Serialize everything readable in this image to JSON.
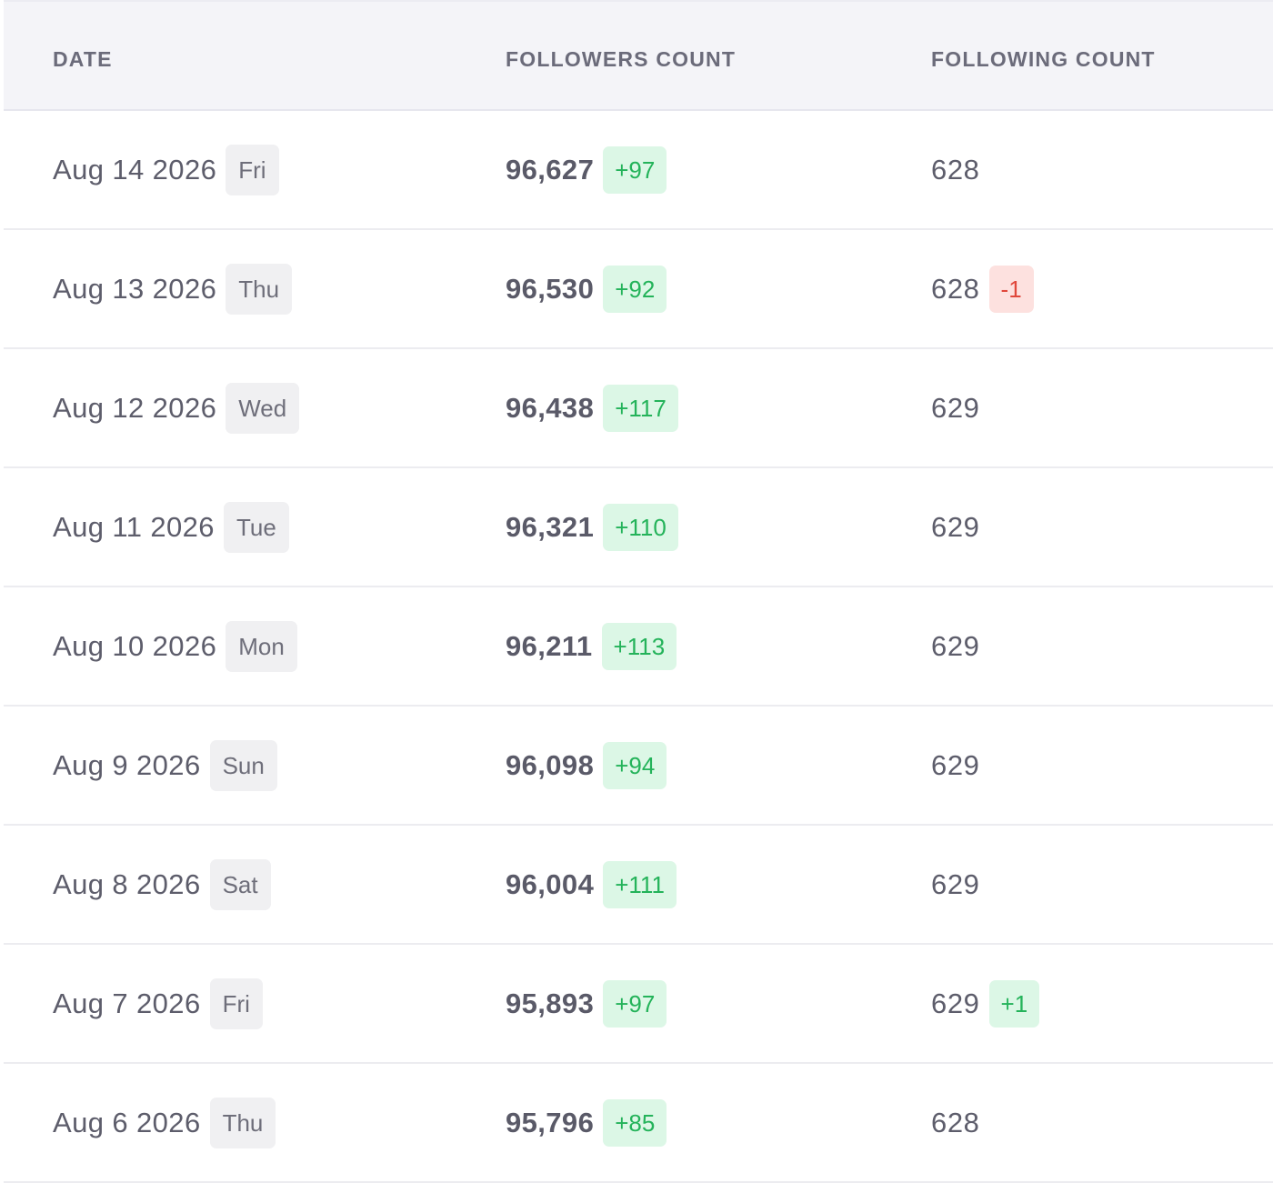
{
  "table": {
    "headers": {
      "date": "DATE",
      "followers": "FOLLOWERS COUNT",
      "following": "FOLLOWING COUNT"
    },
    "colors": {
      "positive_text": "#24b35a",
      "positive_bg": "#dcf7e6",
      "negative_text": "#e0483c",
      "negative_bg": "#fde1df"
    },
    "rows": [
      {
        "date": "Aug 14 2026",
        "day": "Fri",
        "followers": "96,627",
        "followers_delta": "+97",
        "following": "628",
        "following_delta": ""
      },
      {
        "date": "Aug 13 2026",
        "day": "Thu",
        "followers": "96,530",
        "followers_delta": "+92",
        "following": "628",
        "following_delta": "-1"
      },
      {
        "date": "Aug 12 2026",
        "day": "Wed",
        "followers": "96,438",
        "followers_delta": "+117",
        "following": "629",
        "following_delta": ""
      },
      {
        "date": "Aug 11 2026",
        "day": "Tue",
        "followers": "96,321",
        "followers_delta": "+110",
        "following": "629",
        "following_delta": ""
      },
      {
        "date": "Aug 10 2026",
        "day": "Mon",
        "followers": "96,211",
        "followers_delta": "+113",
        "following": "629",
        "following_delta": ""
      },
      {
        "date": "Aug 9 2026",
        "day": "Sun",
        "followers": "96,098",
        "followers_delta": "+94",
        "following": "629",
        "following_delta": ""
      },
      {
        "date": "Aug 8 2026",
        "day": "Sat",
        "followers": "96,004",
        "followers_delta": "+111",
        "following": "629",
        "following_delta": ""
      },
      {
        "date": "Aug 7 2026",
        "day": "Fri",
        "followers": "95,893",
        "followers_delta": "+97",
        "following": "629",
        "following_delta": "+1"
      },
      {
        "date": "Aug 6 2026",
        "day": "Thu",
        "followers": "95,796",
        "followers_delta": "+85",
        "following": "628",
        "following_delta": ""
      }
    ]
  }
}
